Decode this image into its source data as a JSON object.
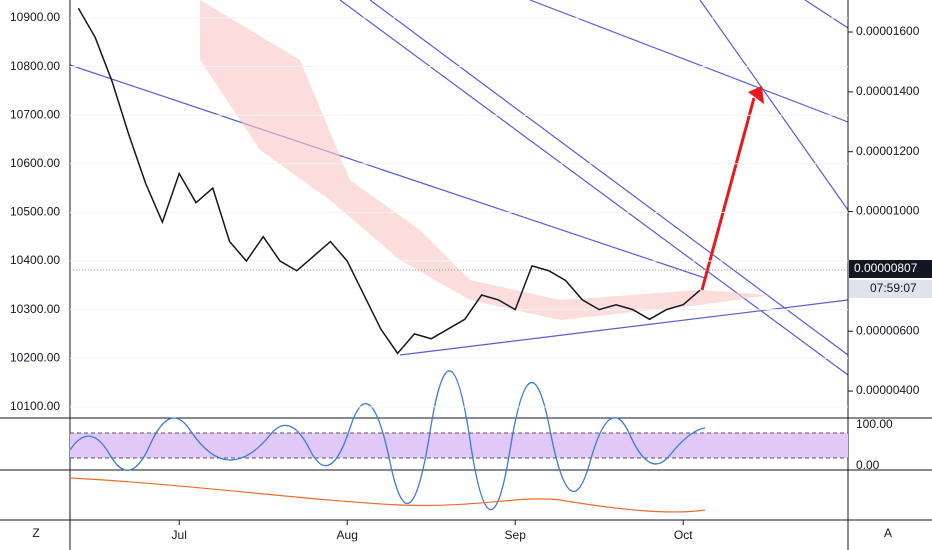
{
  "chart_data": {
    "type": "line",
    "categories": [
      null,
      null,
      null,
      null,
      null,
      null,
      "Jul",
      null,
      null,
      null,
      null,
      null,
      null,
      null,
      null,
      null,
      "Aug",
      null,
      null,
      null,
      null,
      null,
      null,
      null,
      null,
      null,
      "Sep",
      null,
      null,
      null,
      null,
      null,
      null,
      null,
      null,
      null,
      "Oct",
      null,
      null,
      null,
      null,
      null,
      null,
      null,
      null,
      null
    ],
    "series": [
      {
        "color": "#131722",
        "values": [
          10920,
          10860,
          10770,
          10660,
          10560,
          10480,
          10580,
          10520,
          10550,
          10440,
          10400,
          10450,
          10400,
          10380,
          10410,
          10440,
          10400,
          10330,
          10260,
          10210,
          10250,
          10240,
          10260,
          10280,
          10330,
          10320,
          10300,
          10390,
          10380,
          10360,
          10320,
          10300,
          10310,
          10300,
          10280,
          10300,
          10310,
          10340,
          null,
          null,
          null,
          null,
          null,
          null,
          null,
          null
        ]
      }
    ],
    "ylim": [
      10077,
      10937
    ],
    "yticks": [
      {
        "value": 10100,
        "label": "10100.00"
      },
      {
        "value": 10200,
        "label": "10200.00"
      },
      {
        "value": 10300,
        "label": "10300.00"
      },
      {
        "value": 10400,
        "label": "10400.00"
      },
      {
        "value": 10500,
        "label": "10500.00"
      },
      {
        "value": 10600,
        "label": "10600.00"
      },
      {
        "value": 10700,
        "label": "10700.00"
      },
      {
        "value": 10800,
        "label": "10800.00"
      },
      {
        "value": 10900,
        "label": "10900.00"
      }
    ],
    "y2lim": [
      3.1e-06,
      1.707e-05
    ],
    "y2ticks": [
      {
        "value": 4e-06,
        "label": "0.00000400"
      },
      {
        "value": 6e-06,
        "label": "0.00000600"
      },
      {
        "value": 1e-05,
        "label": "0.00001000"
      },
      {
        "value": 1.2e-05,
        "label": "0.00001200"
      },
      {
        "value": 1.4e-05,
        "label": "0.00001400"
      },
      {
        "value": 1.6e-05,
        "label": "0.00001600"
      }
    ],
    "last_price": {
      "value": 8.07e-06,
      "label": "0.00000807"
    },
    "countdown": "07:59:07",
    "oscillator_ticks": [
      "100.00",
      "0.00"
    ],
    "grid": true
  },
  "toolbar": {
    "left": "Z",
    "right": "A"
  }
}
